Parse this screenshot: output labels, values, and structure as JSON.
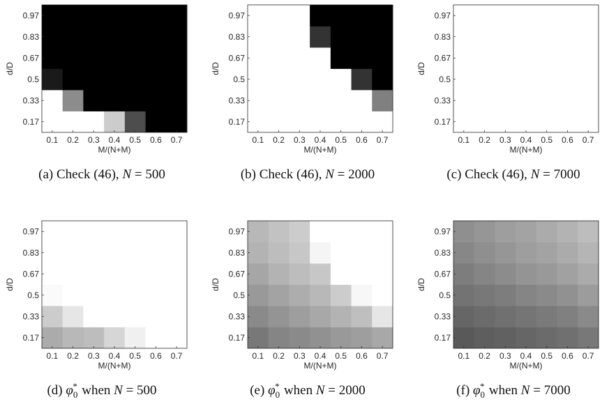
{
  "chart_data": [
    {
      "type": "heatmap",
      "caption": "(a) Check (46), N = 500",
      "xlabel": "M/(N+M)",
      "ylabel": "d/D",
      "x_ticks": [
        "0.1",
        "0.2",
        "0.3",
        "0.4",
        "0.5",
        "0.6",
        "0.7"
      ],
      "y_ticks": [
        "0.17",
        "0.33",
        "0.5",
        "0.67",
        "0.83",
        "0.97"
      ],
      "colormap": "gray",
      "values": [
        [
          1.0,
          1.0,
          1.0,
          0.8,
          0.3,
          0.0,
          0.0
        ],
        [
          1.0,
          0.55,
          0.0,
          0.0,
          0.0,
          0.0,
          0.0
        ],
        [
          0.1,
          0.0,
          0.0,
          0.0,
          0.0,
          0.0,
          0.0
        ],
        [
          0.0,
          0.0,
          0.0,
          0.0,
          0.0,
          0.0,
          0.0
        ],
        [
          0.0,
          0.0,
          0.0,
          0.0,
          0.0,
          0.0,
          0.0
        ],
        [
          0.0,
          0.0,
          0.0,
          0.0,
          0.0,
          0.0,
          0.0
        ]
      ]
    },
    {
      "type": "heatmap",
      "caption": "(b) Check (46), N = 2000",
      "xlabel": "M/(N+M)",
      "ylabel": "d/D",
      "x_ticks": [
        "0.1",
        "0.2",
        "0.3",
        "0.4",
        "0.5",
        "0.6",
        "0.7"
      ],
      "y_ticks": [
        "0.17",
        "0.33",
        "0.5",
        "0.67",
        "0.83",
        "0.97"
      ],
      "colormap": "gray",
      "values": [
        [
          1.0,
          1.0,
          1.0,
          1.0,
          1.0,
          1.0,
          1.0
        ],
        [
          1.0,
          1.0,
          1.0,
          1.0,
          1.0,
          1.0,
          0.5
        ],
        [
          1.0,
          1.0,
          1.0,
          1.0,
          1.0,
          0.2,
          0.0
        ],
        [
          1.0,
          1.0,
          1.0,
          1.0,
          0.0,
          0.0,
          0.0
        ],
        [
          1.0,
          1.0,
          1.0,
          0.2,
          0.0,
          0.0,
          0.0
        ],
        [
          1.0,
          1.0,
          1.0,
          0.0,
          0.0,
          0.0,
          0.0
        ]
      ]
    },
    {
      "type": "heatmap",
      "caption": "(c) Check (46), N = 7000",
      "xlabel": "M/(N+M)",
      "ylabel": "d/D",
      "x_ticks": [
        "0.1",
        "0.2",
        "0.3",
        "0.4",
        "0.5",
        "0.6",
        "0.7"
      ],
      "y_ticks": [
        "0.17",
        "0.33",
        "0.5",
        "0.67",
        "0.83",
        "0.97"
      ],
      "colormap": "gray",
      "values": [
        [
          1.0,
          1.0,
          1.0,
          1.0,
          1.0,
          1.0,
          1.0
        ],
        [
          1.0,
          1.0,
          1.0,
          1.0,
          1.0,
          1.0,
          1.0
        ],
        [
          1.0,
          1.0,
          1.0,
          1.0,
          1.0,
          1.0,
          1.0
        ],
        [
          1.0,
          1.0,
          1.0,
          1.0,
          1.0,
          1.0,
          1.0
        ],
        [
          1.0,
          1.0,
          1.0,
          1.0,
          1.0,
          1.0,
          1.0
        ],
        [
          1.0,
          1.0,
          1.0,
          1.0,
          1.0,
          1.0,
          1.0
        ]
      ]
    },
    {
      "type": "heatmap",
      "caption": "(d) φ0* when N = 500",
      "xlabel": "M/(N+M)",
      "ylabel": "d/D",
      "x_ticks": [
        "0.1",
        "0.2",
        "0.3",
        "0.4",
        "0.5",
        "0.6",
        "0.7"
      ],
      "y_ticks": [
        "0.17",
        "0.33",
        "0.5",
        "0.67",
        "0.83",
        "0.97"
      ],
      "colormap": "gray",
      "values": [
        [
          0.67,
          0.72,
          0.74,
          0.84,
          0.94,
          1.0,
          1.0
        ],
        [
          0.8,
          0.9,
          1.0,
          1.0,
          1.0,
          1.0,
          1.0
        ],
        [
          0.98,
          1.0,
          1.0,
          1.0,
          1.0,
          1.0,
          1.0
        ],
        [
          1.0,
          1.0,
          1.0,
          1.0,
          1.0,
          1.0,
          1.0
        ],
        [
          1.0,
          1.0,
          1.0,
          1.0,
          1.0,
          1.0,
          1.0
        ],
        [
          1.0,
          1.0,
          1.0,
          1.0,
          1.0,
          1.0,
          1.0
        ]
      ]
    },
    {
      "type": "heatmap",
      "caption": "(e) φ0* when N = 2000",
      "xlabel": "M/(N+M)",
      "ylabel": "d/D",
      "x_ticks": [
        "0.1",
        "0.2",
        "0.3",
        "0.4",
        "0.5",
        "0.6",
        "0.7"
      ],
      "y_ticks": [
        "0.17",
        "0.33",
        "0.5",
        "0.67",
        "0.83",
        "0.97"
      ],
      "colormap": "gray",
      "values": [
        [
          0.47,
          0.52,
          0.54,
          0.57,
          0.6,
          0.62,
          0.66
        ],
        [
          0.54,
          0.58,
          0.62,
          0.66,
          0.7,
          0.75,
          0.9
        ],
        [
          0.6,
          0.64,
          0.68,
          0.72,
          0.8,
          0.97,
          1.0
        ],
        [
          0.65,
          0.7,
          0.74,
          0.78,
          1.0,
          1.0,
          1.0
        ],
        [
          0.7,
          0.74,
          0.78,
          0.96,
          1.0,
          1.0,
          1.0
        ],
        [
          0.72,
          0.76,
          0.8,
          1.0,
          1.0,
          1.0,
          1.0
        ]
      ]
    },
    {
      "type": "heatmap",
      "caption": "(f) φ0* when N = 7000",
      "xlabel": "M/(N+M)",
      "ylabel": "d/D",
      "x_ticks": [
        "0.1",
        "0.2",
        "0.3",
        "0.4",
        "0.5",
        "0.6",
        "0.7"
      ],
      "y_ticks": [
        "0.17",
        "0.33",
        "0.5",
        "0.67",
        "0.83",
        "0.97"
      ],
      "colormap": "gray",
      "values": [
        [
          0.35,
          0.37,
          0.38,
          0.4,
          0.42,
          0.44,
          0.47
        ],
        [
          0.4,
          0.42,
          0.44,
          0.46,
          0.48,
          0.5,
          0.54
        ],
        [
          0.45,
          0.47,
          0.49,
          0.52,
          0.54,
          0.57,
          0.61
        ],
        [
          0.49,
          0.52,
          0.55,
          0.58,
          0.6,
          0.63,
          0.67
        ],
        [
          0.53,
          0.56,
          0.59,
          0.62,
          0.64,
          0.67,
          0.71
        ],
        [
          0.56,
          0.59,
          0.62,
          0.64,
          0.67,
          0.7,
          0.74
        ]
      ]
    }
  ]
}
